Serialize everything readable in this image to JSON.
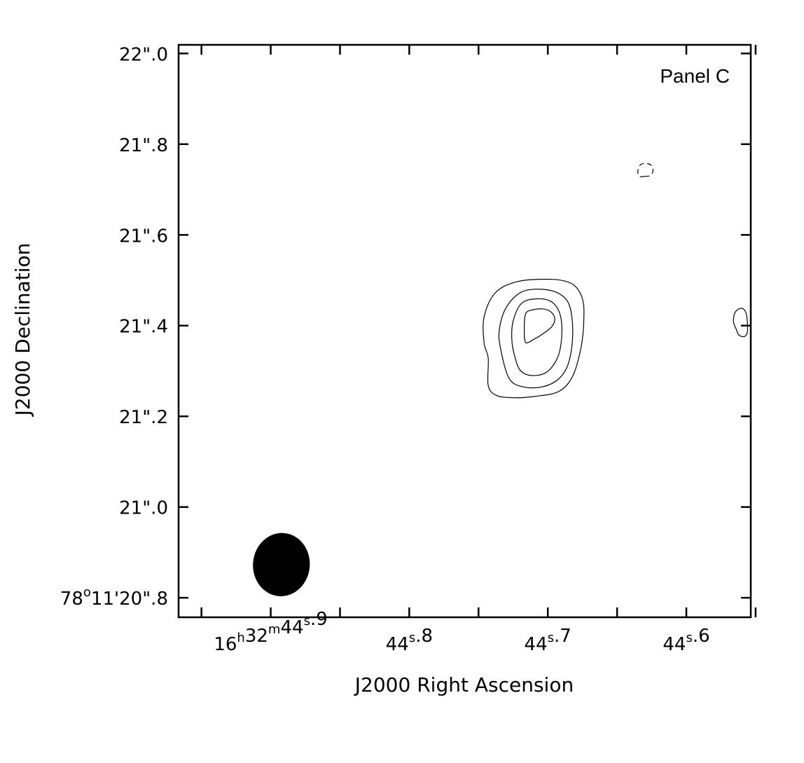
{
  "chart_data": {
    "type": "contour",
    "panel_label": "Panel C",
    "xlabel": "J2000 Right Ascension",
    "ylabel": "J2000 Declination",
    "x_ticks": [
      {
        "value": 44.9,
        "sup": [
          [
            "16",
            "h"
          ],
          [
            "32",
            "m"
          ],
          [
            "44",
            "s"
          ]
        ],
        "tail": ".9"
      },
      {
        "value": 44.8,
        "sup": [
          [
            "44",
            "s"
          ]
        ],
        "tail": ".8"
      },
      {
        "value": 44.7,
        "sup": [
          [
            "44",
            "s"
          ]
        ],
        "tail": ".7"
      },
      {
        "value": 44.6,
        "sup": [
          [
            "44",
            "s"
          ]
        ],
        "tail": ".6"
      }
    ],
    "y_ticks": [
      {
        "value": 20.8,
        "label_main": "78",
        "label_sup": "o",
        "label_rest": "11'20\".8"
      },
      {
        "value": 21.0,
        "label_main": "21\".0"
      },
      {
        "value": 21.2,
        "label_main": "21\".2"
      },
      {
        "value": 21.4,
        "label_main": "21\".4"
      },
      {
        "value": 21.6,
        "label_main": "21\".6"
      },
      {
        "value": 21.8,
        "label_main": "21\".8"
      },
      {
        "value": 22.0,
        "label_main": "22\".0"
      }
    ],
    "xlim": [
      44.9665,
      44.5535
    ],
    "ylim": [
      20.757,
      22.019
    ],
    "contours": [
      {
        "level": 1,
        "style": "solid",
        "points": [
          [
            44.743,
            21.328
          ],
          [
            44.746,
            21.362
          ],
          [
            44.746,
            21.419
          ],
          [
            44.738,
            21.472
          ],
          [
            44.722,
            21.497
          ],
          [
            44.697,
            21.502
          ],
          [
            44.682,
            21.491
          ],
          [
            44.675,
            21.459
          ],
          [
            44.674,
            21.412
          ],
          [
            44.676,
            21.352
          ],
          [
            44.682,
            21.289
          ],
          [
            44.692,
            21.255
          ],
          [
            44.709,
            21.244
          ],
          [
            44.724,
            21.241
          ],
          [
            44.737,
            21.246
          ],
          [
            44.743,
            21.268
          ]
        ]
      },
      {
        "level": 2,
        "style": "solid",
        "points": [
          [
            44.734,
            21.348
          ],
          [
            44.735,
            21.391
          ],
          [
            44.73,
            21.44
          ],
          [
            44.719,
            21.474
          ],
          [
            44.704,
            21.48
          ],
          [
            44.691,
            21.469
          ],
          [
            44.684,
            21.441
          ],
          [
            44.682,
            21.38
          ],
          [
            44.685,
            21.318
          ],
          [
            44.692,
            21.283
          ],
          [
            44.704,
            21.265
          ],
          [
            44.718,
            21.265
          ],
          [
            44.728,
            21.284
          ]
        ]
      },
      {
        "level": 3,
        "style": "solid",
        "points": [
          [
            44.726,
            21.37
          ],
          [
            44.725,
            21.41
          ],
          [
            44.719,
            21.449
          ],
          [
            44.708,
            21.459
          ],
          [
            44.697,
            21.452
          ],
          [
            44.691,
            21.423
          ],
          [
            44.69,
            21.375
          ],
          [
            44.693,
            21.329
          ],
          [
            44.701,
            21.297
          ],
          [
            44.712,
            21.29
          ],
          [
            44.72,
            21.302
          ],
          [
            44.724,
            21.334
          ]
        ]
      },
      {
        "level": 4,
        "style": "solid",
        "points": [
          [
            44.716,
            21.426
          ],
          [
            44.712,
            21.434
          ],
          [
            44.704,
            21.437
          ],
          [
            44.698,
            21.431
          ],
          [
            44.695,
            21.416
          ],
          [
            44.697,
            21.398
          ],
          [
            44.703,
            21.383
          ],
          [
            44.71,
            21.37
          ],
          [
            44.716,
            21.363
          ],
          [
            44.717,
            21.395
          ]
        ]
      },
      {
        "level": -1,
        "style": "dashed",
        "points": [
          [
            44.63,
            21.729
          ],
          [
            44.634,
            21.729
          ],
          [
            44.635,
            21.742
          ],
          [
            44.633,
            21.755
          ],
          [
            44.63,
            21.757
          ],
          [
            44.626,
            21.755
          ],
          [
            44.624,
            21.742
          ],
          [
            44.626,
            21.731
          ]
        ]
      },
      {
        "level": 1,
        "style": "solid",
        "points": [
          [
            44.562,
            21.437
          ],
          [
            44.565,
            21.428
          ],
          [
            44.566,
            21.409
          ],
          [
            44.564,
            21.392
          ],
          [
            44.562,
            21.379
          ],
          [
            44.558,
            21.376
          ],
          [
            44.556,
            21.386
          ],
          [
            44.556,
            21.409
          ],
          [
            44.557,
            21.428
          ],
          [
            44.559,
            21.437
          ]
        ]
      }
    ],
    "beam": {
      "x": 44.8923,
      "y": 20.8731,
      "rx": 0.0205,
      "ry": 0.0698,
      "rotate": 5,
      "fill": "#000000"
    }
  }
}
